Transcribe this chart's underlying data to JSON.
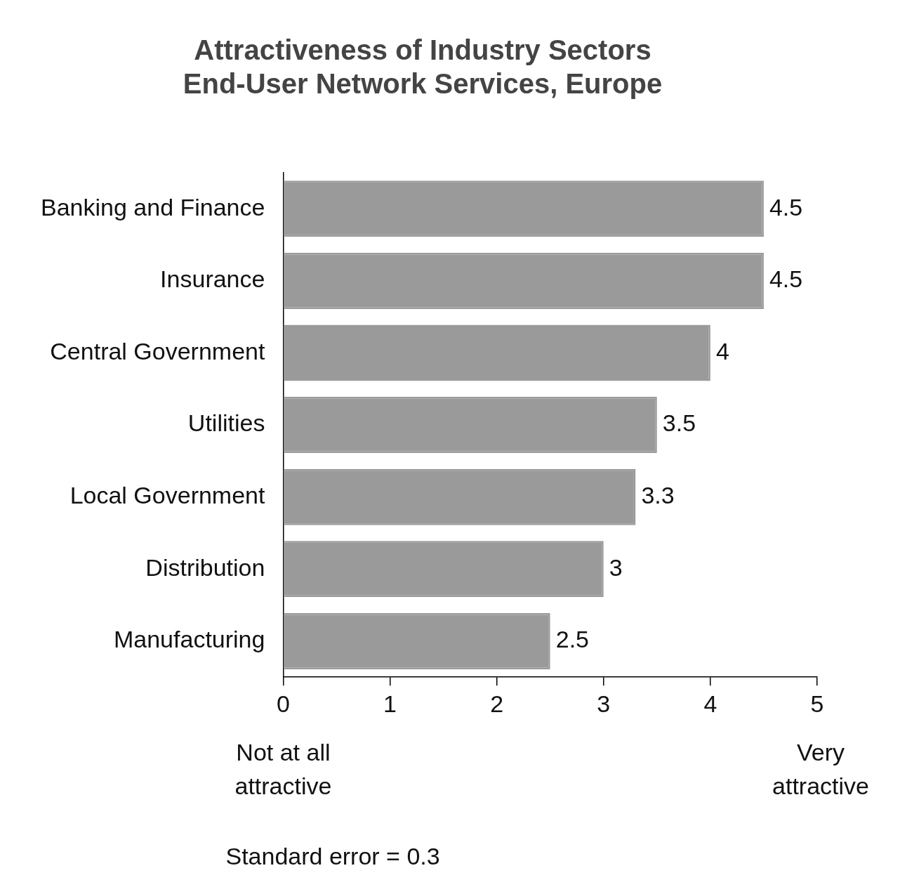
{
  "chart_data": {
    "type": "bar",
    "orientation": "horizontal",
    "title": [
      "Attractiveness of Industry Sectors",
      "End-User Network Services, Europe"
    ],
    "categories": [
      "Banking and Finance",
      "Insurance",
      "Central Government",
      "Utilities",
      "Local Government",
      "Distribution",
      "Manufacturing"
    ],
    "values": [
      4.5,
      4.5,
      4,
      3.5,
      3.3,
      3,
      2.5
    ],
    "color": "#9a9a9a",
    "xlim": [
      0,
      5
    ],
    "xticks": [
      0,
      1,
      2,
      3,
      4,
      5
    ],
    "data_labels": true,
    "legend": false,
    "grid": false,
    "annotations": [
      "Not at all\nattractive",
      "Very\nattractive",
      "Standard error = 0.3"
    ]
  }
}
